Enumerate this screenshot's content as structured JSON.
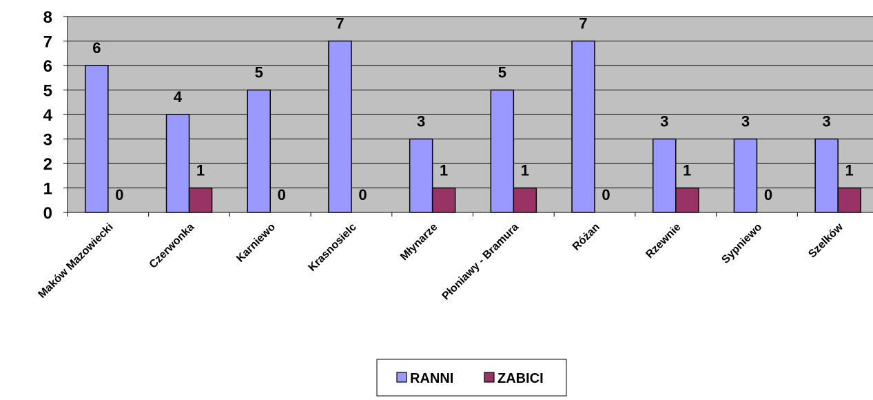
{
  "chart_data": {
    "type": "bar",
    "categories": [
      "Maków Mazowiecki",
      "Czerwonka",
      "Karniewo",
      "Krasnosielc",
      "Młynarze",
      "Płoniawy - Bramura",
      "Różan",
      "Rzewnie",
      "Sypniewo",
      "Szelków"
    ],
    "series": [
      {
        "name": "RANNI",
        "values": [
          6,
          4,
          5,
          7,
          3,
          5,
          7,
          3,
          3,
          3
        ],
        "color": "#9999ff"
      },
      {
        "name": "ZABICI",
        "values": [
          0,
          1,
          0,
          0,
          1,
          1,
          0,
          1,
          0,
          1
        ],
        "color": "#993366"
      }
    ],
    "ylim": [
      0,
      8
    ],
    "yticks": [
      "0",
      "1",
      "2",
      "3",
      "4",
      "5",
      "6",
      "7",
      "8"
    ],
    "grid": true,
    "plot_background": "#c0c0c0",
    "legend_position": "bottom",
    "data_labels": true
  }
}
